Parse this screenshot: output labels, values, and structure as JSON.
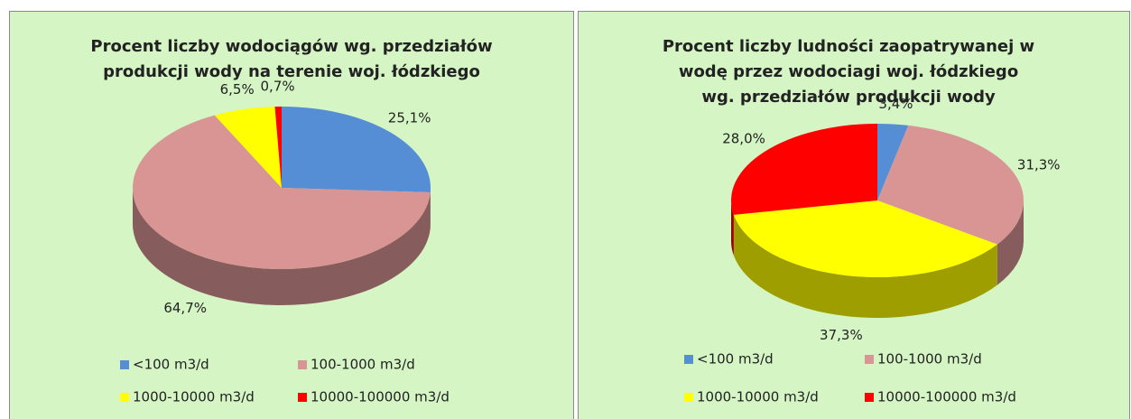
{
  "chart_data": [
    {
      "type": "pie3d",
      "title": [
        "Procent liczby wodociągów wg. przedziałów",
        "produkcji wody na terenie woj. łódzkiego"
      ],
      "categories": [
        "<100 m3/d",
        "100-1000 m3/d",
        "1000-10000 m3/d",
        "10000-100000 m3/d"
      ],
      "values": [
        25.1,
        64.7,
        6.5,
        0.7
      ],
      "value_labels": [
        "25,1%",
        "64,7%",
        "6,5%",
        "0,7%"
      ],
      "colors": [
        "#558ed5",
        "#d99594",
        "#ffff00",
        "#ff0000"
      ]
    },
    {
      "type": "pie3d",
      "title": [
        "Procent liczby ludności zaopatrywanej w",
        "wodę przez wodociagi woj. łódzkiego",
        "wg. przedziałów produkcji wody"
      ],
      "categories": [
        "<100 m3/d",
        "100-1000 m3/d",
        "1000-10000 m3/d",
        "10000-100000 m3/d"
      ],
      "values": [
        3.4,
        31.3,
        37.3,
        28.0
      ],
      "value_labels": [
        "3,4%",
        "31,3%",
        "37,3%",
        "28,0%"
      ],
      "colors": [
        "#558ed5",
        "#d99594",
        "#ffff00",
        "#ff0000"
      ]
    }
  ]
}
